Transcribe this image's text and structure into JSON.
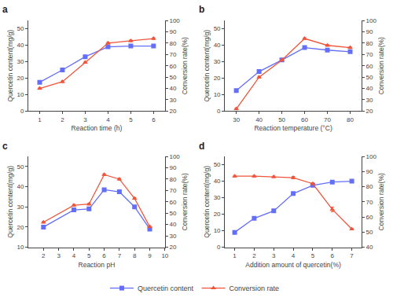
{
  "chart_data": [
    {
      "type": "line",
      "title": "a",
      "x_label": "Reaction time (h)",
      "y_label": "Quercetin content(mg/g)",
      "y2_label": "Conversion rate(%)",
      "x": [
        1,
        2,
        3,
        4,
        5,
        6
      ],
      "series": [
        {
          "name": "Quercetin content",
          "marker": "square",
          "values": [
            17.5,
            25.0,
            33.0,
            39.0,
            39.5,
            39.5
          ],
          "errors": [
            0.6,
            0.6,
            0.6,
            0.6,
            0.6,
            0.6
          ]
        },
        {
          "name": "Conversion rate",
          "marker": "triangle-up",
          "axis": "y2",
          "values": [
            40.0,
            46.0,
            63.0,
            80.0,
            82.0,
            84.0
          ],
          "errors": [
            0.8,
            0.8,
            0.8,
            0.8,
            0.8,
            0.8
          ]
        }
      ],
      "xlim": [
        0.5,
        6.5
      ],
      "xticks": [
        1,
        2,
        3,
        4,
        5,
        6
      ],
      "ylim": [
        0,
        55
      ],
      "yticks": [
        0,
        10,
        20,
        30,
        40,
        50
      ],
      "y2lim": [
        20,
        100
      ],
      "y2ticks": [
        20,
        30,
        40,
        50,
        60,
        70,
        80,
        90,
        100
      ],
      "grid": false,
      "legend": "bottom"
    },
    {
      "type": "line",
      "title": "b",
      "x_label": "Reaction temperature (°C)",
      "y_label": "Quercetin content(mg/g)",
      "y2_label": "Conversion rate(%)",
      "x": [
        30,
        40,
        50,
        60,
        70,
        80
      ],
      "series": [
        {
          "name": "Quercetin content",
          "marker": "square",
          "values": [
            12.5,
            24.0,
            31.0,
            38.5,
            37.0,
            36.0
          ],
          "errors": [
            0.6,
            0.6,
            0.6,
            0.6,
            0.6,
            0.6
          ]
        },
        {
          "name": "Conversion rate",
          "marker": "triangle-up",
          "axis": "y2",
          "values": [
            22.0,
            50.0,
            65.0,
            84.0,
            78.0,
            76.0
          ],
          "errors": [
            0.8,
            0.8,
            0.8,
            0.8,
            0.8,
            0.8
          ]
        }
      ],
      "xlim": [
        25,
        85
      ],
      "xticks": [
        30,
        40,
        50,
        60,
        70,
        80
      ],
      "ylim": [
        0,
        55
      ],
      "yticks": [
        0,
        10,
        20,
        30,
        40,
        50
      ],
      "y2lim": [
        20,
        100
      ],
      "y2ticks": [
        20,
        30,
        40,
        50,
        60,
        70,
        80,
        90,
        100
      ],
      "grid": false,
      "legend": "bottom"
    },
    {
      "type": "line",
      "title": "c",
      "x_label": "Reaction pH",
      "y_label": "Quercetin content(mg/g)",
      "y2_label": "Conversion rate(%)",
      "x": [
        2,
        4,
        5,
        6,
        7,
        8,
        9
      ],
      "series": [
        {
          "name": "Quercetin content",
          "marker": "square",
          "values": [
            20.0,
            28.5,
            29.0,
            38.5,
            37.5,
            30.0,
            19.0
          ],
          "errors": [
            0.6,
            0.6,
            0.6,
            0.6,
            0.6,
            0.6,
            0.6
          ]
        },
        {
          "name": "Conversion rate",
          "marker": "triangle-up",
          "axis": "y2",
          "values": [
            42.0,
            57.0,
            58.0,
            84.0,
            80.0,
            63.0,
            38.0
          ],
          "errors": [
            0.8,
            0.8,
            0.8,
            0.8,
            0.8,
            0.8,
            0.8
          ]
        }
      ],
      "xlim": [
        1,
        10
      ],
      "xticks": [
        2,
        3,
        4,
        5,
        6,
        7,
        8,
        9,
        10
      ],
      "ylim": [
        10,
        55
      ],
      "yticks": [
        10,
        20,
        30,
        40,
        50
      ],
      "y2lim": [
        20,
        100
      ],
      "y2ticks": [
        20,
        30,
        40,
        50,
        60,
        70,
        80,
        90,
        100
      ],
      "grid": false,
      "legend": "bottom"
    },
    {
      "type": "line",
      "title": "d",
      "x_label": "Addition amount of quercetin(%)",
      "y_label": "Quercetin content(mg/g)",
      "y2_label": "Conversion rate(%)",
      "x": [
        1,
        2,
        3,
        4,
        5,
        6,
        7
      ],
      "series": [
        {
          "name": "Quercetin content",
          "marker": "square",
          "values": [
            9.0,
            17.5,
            22.0,
            32.5,
            37.5,
            39.5,
            40.0
          ],
          "errors": [
            0.6,
            0.8,
            0.8,
            0.8,
            0.6,
            0.6,
            0.6
          ]
        },
        {
          "name": "Conversion rate",
          "marker": "triangle-up",
          "axis": "y2",
          "values": [
            87.0,
            87.0,
            86.5,
            86.0,
            82.0,
            65.0,
            52.0
          ],
          "errors": [
            0.5,
            0.5,
            0.5,
            0.8,
            0.6,
            1.5,
            0.5
          ]
        }
      ],
      "xlim": [
        0.5,
        7.5
      ],
      "xticks": [
        1,
        2,
        3,
        4,
        5,
        6,
        7
      ],
      "ylim": [
        0,
        55
      ],
      "yticks": [
        0,
        10,
        20,
        30,
        40,
        50
      ],
      "y2lim": [
        40,
        100
      ],
      "y2ticks": [
        40,
        50,
        60,
        70,
        80,
        90,
        100
      ],
      "grid": false,
      "legend": "bottom"
    }
  ]
}
